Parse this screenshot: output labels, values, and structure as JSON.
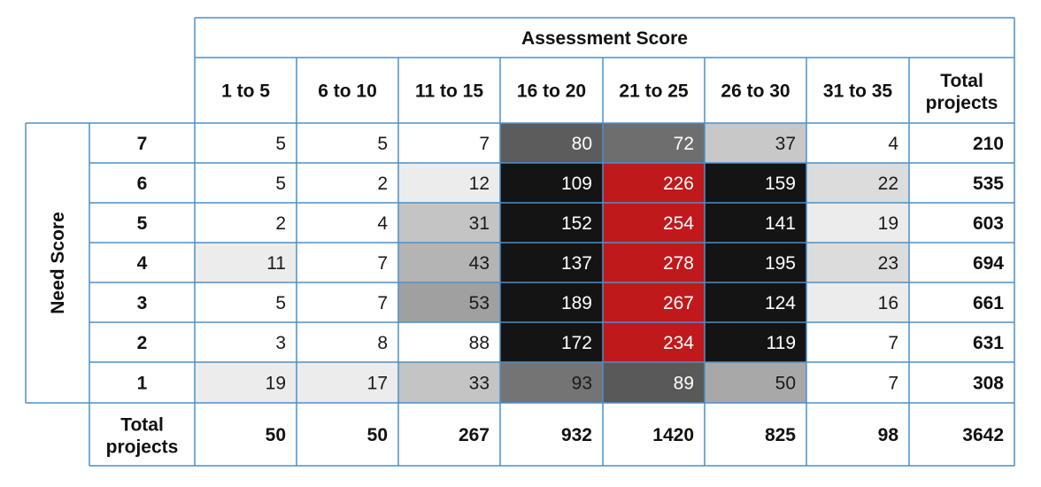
{
  "chart_data": {
    "type": "heatmap",
    "title": "",
    "xlabel": "Assessment Score",
    "ylabel": "Need Score",
    "x_categories": [
      "1 to 5",
      "6 to 10",
      "11 to 15",
      "16 to 20",
      "21 to 25",
      "26 to 30",
      "31 to 35"
    ],
    "y_categories": [
      "7",
      "6",
      "5",
      "4",
      "3",
      "2",
      "1"
    ],
    "values": [
      [
        5,
        5,
        7,
        80,
        72,
        37,
        4
      ],
      [
        5,
        2,
        12,
        109,
        226,
        159,
        22
      ],
      [
        2,
        4,
        31,
        152,
        254,
        141,
        19
      ],
      [
        11,
        7,
        43,
        137,
        278,
        195,
        23
      ],
      [
        5,
        7,
        53,
        189,
        267,
        124,
        16
      ],
      [
        3,
        8,
        88,
        172,
        234,
        119,
        7
      ],
      [
        19,
        17,
        33,
        93,
        89,
        50,
        7
      ]
    ],
    "row_totals": [
      210,
      535,
      603,
      694,
      661,
      631,
      308
    ],
    "column_totals": [
      50,
      50,
      267,
      932,
      1420,
      825,
      98
    ],
    "grand_total": 3642,
    "totals_label": "Total projects",
    "totals_label_lines": [
      "Total",
      "projects"
    ],
    "highlight_color": "#c0191b",
    "cell_colors": [
      [
        "#ffffff",
        "#ffffff",
        "#ffffff",
        "#5c5c5c",
        "#6e6e6e",
        "#c8c8c8",
        "#ffffff"
      ],
      [
        "#ffffff",
        "#ffffff",
        "#ececec",
        "#141414",
        "#c0191b",
        "#141414",
        "#dcdcdc"
      ],
      [
        "#ffffff",
        "#ffffff",
        "#c4c4c4",
        "#141414",
        "#c0191b",
        "#141414",
        "#ececec"
      ],
      [
        "#ececec",
        "#ffffff",
        "#b4b4b4",
        "#141414",
        "#c0191b",
        "#141414",
        "#dcdcdc"
      ],
      [
        "#ffffff",
        "#ffffff",
        "#a0a0a0",
        "#141414",
        "#c0191b",
        "#141414",
        "#ececec"
      ],
      [
        "#ffffff",
        "#ffffff",
        "#ffffff",
        "#141414",
        "#c0191b",
        "#141414",
        "#ffffff"
      ],
      [
        "#ececec",
        "#ececec",
        "#c4c4c4",
        "#747474",
        "#595959",
        "#a8a8a8",
        "#ffffff"
      ]
    ]
  }
}
